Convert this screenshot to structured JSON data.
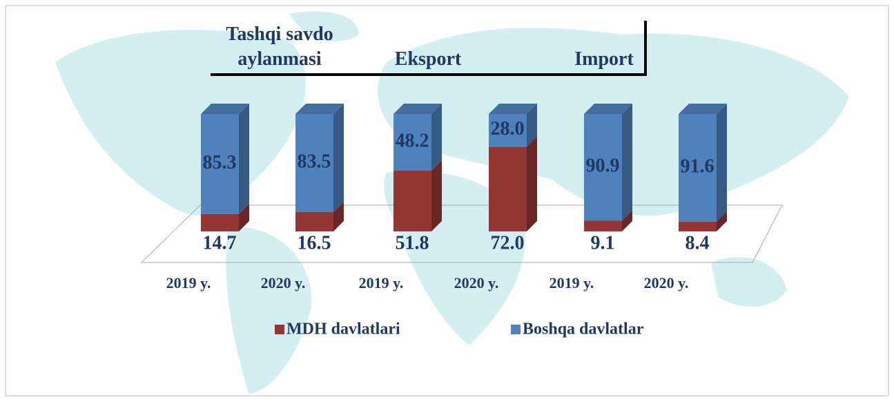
{
  "chart_data": {
    "type": "bar",
    "stacked": true,
    "groups": [
      {
        "label": "Tashqi savdo aylanmasi"
      },
      {
        "label": "Eksport"
      },
      {
        "label": "Import"
      }
    ],
    "categories": [
      "2019 y.",
      "2020 y.",
      "2019 y.",
      "2020 y.",
      "2019 y.",
      "2020 y."
    ],
    "series": [
      {
        "name": "MDH davlatlari",
        "color": "#943634",
        "values": [
          14.7,
          16.5,
          51.8,
          72.0,
          9.1,
          8.4
        ],
        "value_labels": [
          "14.7",
          "16.5",
          "51.8",
          "72.0",
          "9.1",
          "8.4"
        ]
      },
      {
        "name": "Boshqa davlatlar",
        "color": "#4f81bd",
        "values": [
          85.3,
          83.5,
          48.2,
          28.0,
          90.9,
          91.6
        ],
        "value_labels": [
          "85.3",
          "83.5",
          "48.2",
          "28.0",
          "90.9",
          "91.6"
        ]
      }
    ],
    "legend": "bottom"
  }
}
